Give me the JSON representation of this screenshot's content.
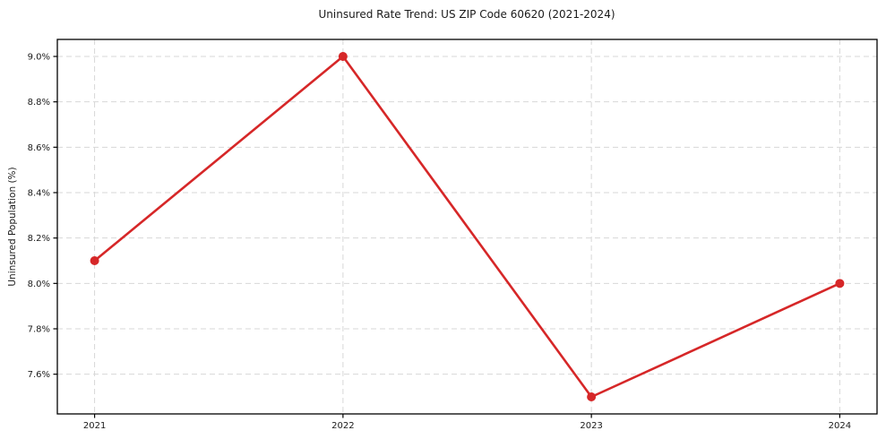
{
  "chart_data": {
    "type": "line",
    "title": "Uninsured Rate Trend: US ZIP Code 60620 (2021-2024)",
    "xlabel": "",
    "ylabel": "Uninsured Population (%)",
    "x": [
      2021,
      2022,
      2023,
      2024
    ],
    "values": [
      8.1,
      9.0,
      7.5,
      8.0
    ],
    "xticks": [
      2021,
      2022,
      2023,
      2024
    ],
    "xtick_labels": [
      "2021",
      "2022",
      "2023",
      "2024"
    ],
    "yticks": [
      7.6,
      7.8,
      8.0,
      8.2,
      8.4,
      8.6,
      8.8,
      9.0
    ],
    "ytick_labels": [
      "7.6%",
      "7.8%",
      "8.0%",
      "8.2%",
      "8.4%",
      "8.6%",
      "8.8%",
      "9.0%"
    ],
    "xlim": [
      2020.85,
      2024.15
    ],
    "ylim": [
      7.425,
      9.075
    ],
    "grid": true,
    "legend": "none",
    "line_color": "#d62728",
    "marker_color": "#d62728",
    "grid_color": "#d7d7d7",
    "axis_color": "#000000",
    "text_color": "#1a1a1a"
  }
}
